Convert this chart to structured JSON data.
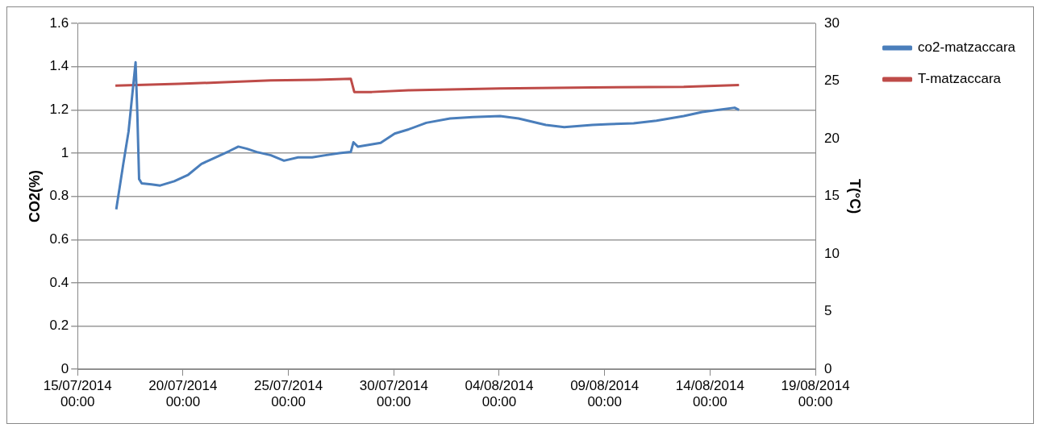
{
  "chart_data": {
    "type": "line",
    "xlabel": null,
    "ylabel": "CO2(%)",
    "y2label": "T(°C)",
    "xlim": [
      "2014-07-15T00:00",
      "2014-08-19T00:00"
    ],
    "xticks": [
      {
        "value": "2014-07-15T00:00",
        "label": "15/07/2014 00:00"
      },
      {
        "value": "2014-07-20T00:00",
        "label": "20/07/2014 00:00"
      },
      {
        "value": "2014-07-25T00:00",
        "label": "25/07/2014 00:00"
      },
      {
        "value": "2014-07-30T00:00",
        "label": "30/07/2014 00:00"
      },
      {
        "value": "2014-08-04T00:00",
        "label": "04/08/2014 00:00"
      },
      {
        "value": "2014-08-09T00:00",
        "label": "09/08/2014 00:00"
      },
      {
        "value": "2014-08-14T00:00",
        "label": "14/08/2014 00:00"
      },
      {
        "value": "2014-08-19T00:00",
        "label": "19/08/2014 00:00"
      }
    ],
    "ylim": [
      0,
      1.6
    ],
    "yticks": [
      0,
      0.2,
      0.4,
      0.6,
      0.8,
      1,
      1.2,
      1.4,
      1.6
    ],
    "y2lim": [
      0,
      30
    ],
    "y2ticks": [
      0,
      5,
      10,
      15,
      20,
      25,
      30
    ],
    "grid": "y",
    "legend": "right",
    "marker": "none",
    "line_style": "solid",
    "series": [
      {
        "name": "co2-matzaccara",
        "color": "#4a7ebb",
        "x": [
          "2014-07-16T20:00",
          "2014-07-17T04:00",
          "2014-07-17T10:00",
          "2014-07-17T15:00",
          "2014-07-17T18:00",
          "2014-07-17T20:00",
          "2014-07-17T22:00",
          "2014-07-18T01:00",
          "2014-07-18T12:00",
          "2014-07-18T22:00",
          "2014-07-19T14:00",
          "2014-07-20T06:00",
          "2014-07-20T21:00",
          "2014-07-21T13:00",
          "2014-07-22T05:00",
          "2014-07-22T15:00",
          "2014-07-23T01:00",
          "2014-07-23T12:00",
          "2014-07-24T04:00",
          "2014-07-24T19:00",
          "2014-07-25T11:00",
          "2014-07-26T03:00",
          "2014-07-26T18:00",
          "2014-07-27T10:00",
          "2014-07-27T23:00",
          "2014-07-28T02:00",
          "2014-07-28T07:00",
          "2014-07-29T09:00",
          "2014-07-30T01:00",
          "2014-07-30T17:00",
          "2014-07-31T13:00",
          "2014-08-01T16:00",
          "2014-08-02T18:00",
          "2014-08-04T01:00",
          "2014-08-04T22:00",
          "2014-08-06T05:00",
          "2014-08-07T02:00",
          "2014-08-08T10:00",
          "2014-08-09T06:00",
          "2014-08-10T09:00",
          "2014-08-11T11:00",
          "2014-08-12T18:00",
          "2014-08-13T15:00",
          "2014-08-15T04:00",
          "2014-08-15T09:00"
        ],
        "values": [
          0.74,
          0.95,
          1.1,
          1.3,
          1.42,
          1.18,
          0.88,
          0.86,
          0.855,
          0.85,
          0.87,
          0.9,
          0.95,
          0.98,
          1.01,
          1.03,
          1.02,
          1.005,
          0.99,
          0.965,
          0.98,
          0.98,
          0.99,
          1,
          1.005,
          1.05,
          1.03,
          1.047,
          1.09,
          1.11,
          1.14,
          1.16,
          1.167,
          1.171,
          1.16,
          1.13,
          1.12,
          1.13,
          1.134,
          1.138,
          1.15,
          1.171,
          1.19,
          1.21,
          1.2
        ]
      },
      {
        "name": "T-matzaccara",
        "color": "#be4b48",
        "axis": "y2",
        "x": [
          "2014-07-16T19:00",
          "2014-07-19T19:00",
          "2014-07-21T23:00",
          "2014-07-24T04:00",
          "2014-07-26T08:00",
          "2014-07-27T23:00",
          "2014-07-28T03:00",
          "2014-07-28T23:00",
          "2014-07-30T17:00",
          "2014-08-04T01:00",
          "2014-08-08T10:00",
          "2014-08-12T18:00",
          "2014-08-15T09:00"
        ],
        "values": [
          24.6,
          24.75,
          24.9,
          25.05,
          25.1,
          25.2,
          24.05,
          24.05,
          24.2,
          24.35,
          24.45,
          24.5,
          24.65
        ]
      }
    ]
  }
}
